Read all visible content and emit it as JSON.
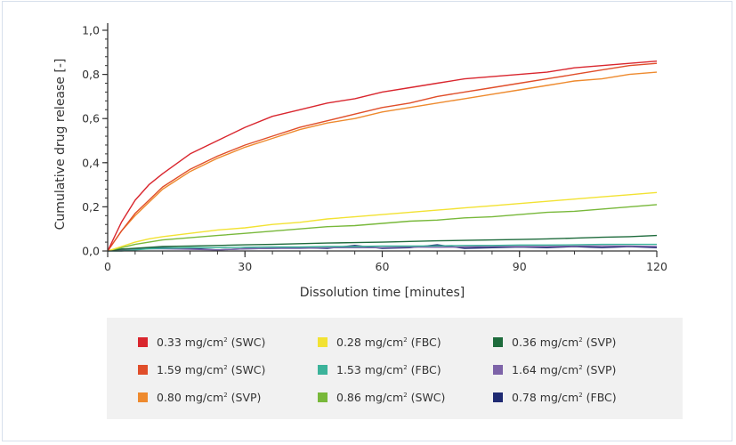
{
  "chart_data": {
    "type": "line",
    "title": "",
    "xlabel": "Dissolution time [minutes]",
    "ylabel": "Cumulative drug release [-]",
    "xlim": [
      0,
      120
    ],
    "ylim": [
      0,
      1.0
    ],
    "x_ticks": [
      0,
      30,
      60,
      90,
      120
    ],
    "x_tick_labels": [
      "0",
      "30",
      "60",
      "90",
      "120"
    ],
    "x_minor_step": 6,
    "y_ticks": [
      0,
      0.2,
      0.4,
      0.6,
      0.8,
      1.0
    ],
    "y_tick_labels": [
      "0,0",
      "0,2",
      "0,4",
      "0,6",
      "0,8",
      "1,0"
    ],
    "y_minor_step": 0.04,
    "grid": false,
    "legend_position": "bottom",
    "x": [
      0,
      3,
      6,
      9,
      12,
      18,
      24,
      30,
      36,
      42,
      48,
      54,
      60,
      66,
      72,
      78,
      84,
      90,
      96,
      102,
      108,
      114,
      120
    ],
    "series": [
      {
        "name": "0.33 mg/cm² (SWC)",
        "dose": "0.33 mg/cm",
        "method": "(SWC)",
        "color": "#d9262e",
        "values": [
          0,
          0.13,
          0.23,
          0.3,
          0.35,
          0.44,
          0.5,
          0.56,
          0.61,
          0.64,
          0.67,
          0.69,
          0.72,
          0.74,
          0.76,
          0.78,
          0.79,
          0.8,
          0.81,
          0.83,
          0.84,
          0.85,
          0.86
        ]
      },
      {
        "name": "1.59 mg/cm² (SWC)",
        "dose": "1.59 mg/cm",
        "method": "(SWC)",
        "color": "#e04e2a",
        "values": [
          0,
          0.09,
          0.17,
          0.23,
          0.29,
          0.37,
          0.43,
          0.48,
          0.52,
          0.56,
          0.59,
          0.62,
          0.65,
          0.67,
          0.7,
          0.72,
          0.74,
          0.76,
          0.78,
          0.8,
          0.82,
          0.84,
          0.85
        ]
      },
      {
        "name": "0.80 mg/cm² (SVP)",
        "dose": "0.80 mg/cm",
        "method": "(SVP)",
        "color": "#ee8a2e",
        "values": [
          0,
          0.09,
          0.16,
          0.22,
          0.28,
          0.36,
          0.42,
          0.47,
          0.51,
          0.55,
          0.58,
          0.6,
          0.63,
          0.65,
          0.67,
          0.69,
          0.71,
          0.73,
          0.75,
          0.77,
          0.78,
          0.8,
          0.81
        ]
      },
      {
        "name": "0.28 mg/cm² (FBC)",
        "dose": "0.28 mg/cm",
        "method": "(FBC)",
        "color": "#f2e233",
        "values": [
          0,
          0.02,
          0.04,
          0.055,
          0.065,
          0.08,
          0.095,
          0.105,
          0.12,
          0.13,
          0.145,
          0.155,
          0.165,
          0.175,
          0.185,
          0.195,
          0.205,
          0.215,
          0.225,
          0.235,
          0.245,
          0.255,
          0.265
        ]
      },
      {
        "name": "1.53 mg/cm² (FBC)",
        "dose": "1.53 mg/cm",
        "method": "(FBC)",
        "color": "#3bb39a",
        "values": [
          0,
          0.0,
          0.005,
          0.01,
          0.012,
          0.015,
          0.015,
          0.017,
          0.018,
          0.018,
          0.02,
          0.02,
          0.022,
          0.022,
          0.023,
          0.025,
          0.025,
          0.027,
          0.027,
          0.028,
          0.03,
          0.03,
          0.03
        ]
      },
      {
        "name": "0.86 mg/cm² (SWC)",
        "dose": "0.86 mg/cm",
        "method": "(SWC)",
        "color": "#78b83a",
        "values": [
          0,
          0.015,
          0.03,
          0.04,
          0.05,
          0.06,
          0.07,
          0.08,
          0.09,
          0.1,
          0.11,
          0.115,
          0.125,
          0.135,
          0.14,
          0.15,
          0.155,
          0.165,
          0.175,
          0.18,
          0.19,
          0.2,
          0.21
        ]
      },
      {
        "name": "0.36 mg/cm² (SVP)",
        "dose": "0.36 mg/cm",
        "method": "(SVP)",
        "color": "#1e6b3c",
        "values": [
          0,
          0.008,
          0.012,
          0.016,
          0.02,
          0.022,
          0.025,
          0.028,
          0.03,
          0.033,
          0.036,
          0.038,
          0.04,
          0.043,
          0.046,
          0.048,
          0.05,
          0.052,
          0.055,
          0.058,
          0.062,
          0.065,
          0.07
        ]
      },
      {
        "name": "1.64 mg/cm² (SVP)",
        "dose": "1.64 mg/cm",
        "method": "(SVP)",
        "color": "#7d63a8",
        "values": [
          0,
          0.005,
          0.008,
          0.01,
          0.01,
          0.008,
          0.005,
          0.01,
          0.012,
          0.012,
          0.015,
          0.015,
          0.015,
          0.018,
          0.017,
          0.018,
          0.02,
          0.02,
          0.02,
          0.022,
          0.022,
          0.022,
          0.02
        ]
      },
      {
        "name": "0.78 mg/cm² (FBC)",
        "dose": "0.78 mg/cm",
        "method": "(FBC)",
        "color": "#1f2a72",
        "values": [
          0,
          0.008,
          0.01,
          0.012,
          0.015,
          0.012,
          0.005,
          0.01,
          0.012,
          0.015,
          0.012,
          0.025,
          0.012,
          0.015,
          0.028,
          0.012,
          0.015,
          0.018,
          0.015,
          0.02,
          0.015,
          0.02,
          0.015
        ]
      }
    ]
  },
  "legend": {
    "superscript": "2",
    "columns": [
      [
        0,
        1,
        2
      ],
      [
        3,
        4,
        5
      ],
      [
        6,
        7,
        8
      ]
    ]
  }
}
